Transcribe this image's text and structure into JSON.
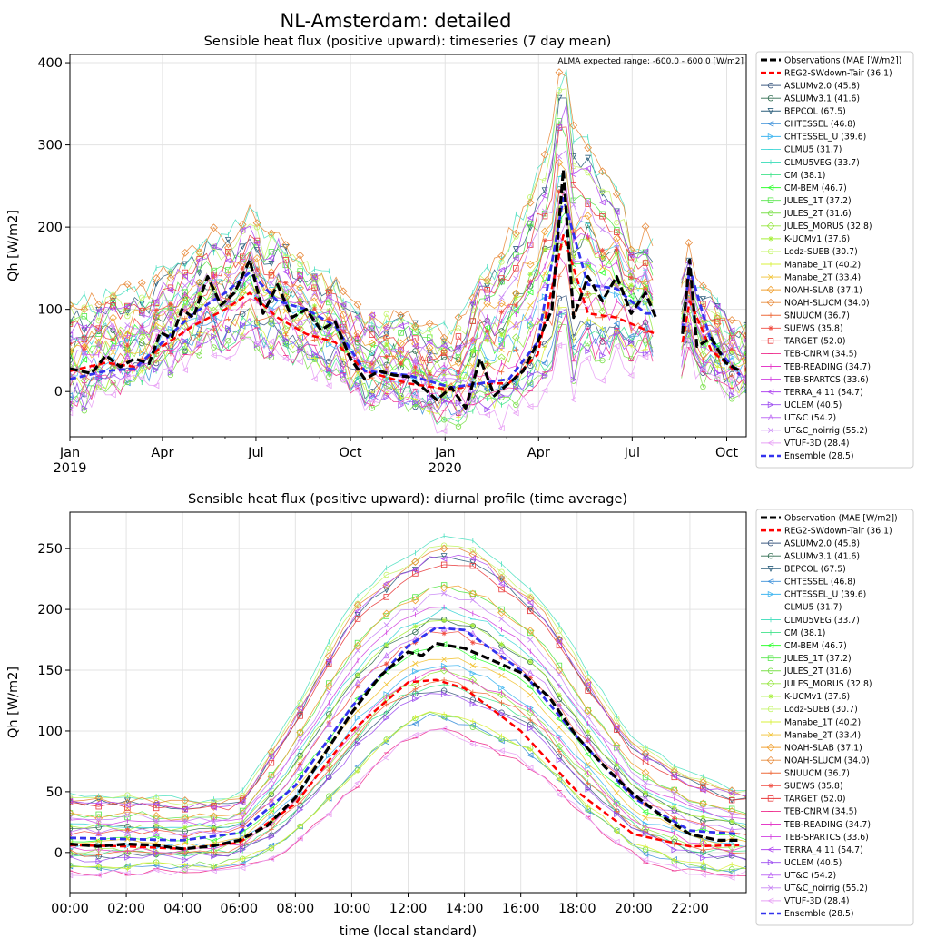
{
  "figure": {
    "title": "NL-Amsterdam: detailed"
  },
  "models": [
    {
      "name": "REG2-SWdown-Tair",
      "color": "#ff0000"
    },
    {
      "name": "ASLUMv2.0",
      "color": "#3d5a80"
    },
    {
      "name": "ASLUMv3.1",
      "color": "#2e6b4f"
    },
    {
      "name": "BEPCOL",
      "color": "#2c5f7c"
    },
    {
      "name": "CHTESSEL",
      "color": "#3a8fd9"
    },
    {
      "name": "CHTESSEL_U",
      "color": "#40b6f0"
    },
    {
      "name": "CLMU5",
      "color": "#3fd6d6"
    },
    {
      "name": "CLMU5VEG",
      "color": "#4ee0c0"
    },
    {
      "name": "CM",
      "color": "#3fe38a"
    },
    {
      "name": "CM-BEM",
      "color": "#33ff33"
    },
    {
      "name": "JULES_1T",
      "color": "#55e64a"
    },
    {
      "name": "JULES_2T",
      "color": "#7be04a"
    },
    {
      "name": "JULES_MORUS",
      "color": "#96e640"
    },
    {
      "name": "K-UCMv1",
      "color": "#a6f03a"
    },
    {
      "name": "Lodz-SUEB",
      "color": "#c4f56a"
    },
    {
      "name": "Manabe_1T",
      "color": "#d8f03a"
    },
    {
      "name": "Manabe_2T",
      "color": "#f2c232"
    },
    {
      "name": "NOAH-SLAB",
      "color": "#f0a030"
    },
    {
      "name": "NOAH-SLUCM",
      "color": "#e88a3a"
    },
    {
      "name": "SNUUCM",
      "color": "#ee6a3a"
    },
    {
      "name": "SUEWS",
      "color": "#f04c40"
    },
    {
      "name": "TARGET",
      "color": "#e8383a"
    },
    {
      "name": "TEB-CNRM",
      "color": "#ee2c8c"
    },
    {
      "name": "TEB-READING",
      "color": "#e43cc8"
    },
    {
      "name": "TEB-SPARTCS",
      "color": "#d040e0"
    },
    {
      "name": "TERRA_4.11",
      "color": "#b048f0"
    },
    {
      "name": "UCLEM",
      "color": "#9c4cf0"
    },
    {
      "name": "UT&C",
      "color": "#c070f5"
    },
    {
      "name": "UT&C_noirrig",
      "color": "#c884f5"
    },
    {
      "name": "VTUF-3D",
      "color": "#e8a0f5"
    }
  ],
  "chart_data": [
    {
      "type": "line",
      "title": "Sensible heat flux (positive upward): timeseries (7 day mean)",
      "ylabel": "Qh [W/m2]",
      "xlabel": "",
      "annotation": "ALMA expected range: -600.0 - 600.0 [W/m2]",
      "xlim": [
        "2019-01-01",
        "2020-10-20"
      ],
      "ylim": [
        -55,
        410
      ],
      "yticks": [
        0,
        100,
        200,
        300,
        400
      ],
      "xticks": [
        {
          "label": "Jan",
          "sublabel": "2019"
        },
        {
          "label": "Apr",
          "sublabel": ""
        },
        {
          "label": "Jul",
          "sublabel": ""
        },
        {
          "label": "Oct",
          "sublabel": ""
        },
        {
          "label": "Jan",
          "sublabel": "2020"
        },
        {
          "label": "Apr",
          "sublabel": ""
        },
        {
          "label": "Jul",
          "sublabel": ""
        },
        {
          "label": "Oct",
          "sublabel": ""
        }
      ],
      "grid": true,
      "legend": {
        "placement": "outside-right",
        "entries": [
          "Observations (MAE [W/m2])",
          "REG2-SWdown-Tair (36.1)",
          "ASLUMv2.0 (45.8)",
          "ASLUMv3.1 (41.6)",
          "BEPCOL (67.5)",
          "CHTESSEL (46.8)",
          "CHTESSEL_U (39.6)",
          "CLMU5 (31.7)",
          "CLMU5VEG (33.7)",
          "CM (38.1)",
          "CM-BEM (46.7)",
          "JULES_1T (37.2)",
          "JULES_2T (31.6)",
          "JULES_MORUS (32.8)",
          "K-UCMv1 (37.6)",
          "Lodz-SUEB (30.7)",
          "Manabe_1T (40.2)",
          "Manabe_2T (33.4)",
          "NOAH-SLAB (37.1)",
          "NOAH-SLUCM (34.0)",
          "SNUUCM (36.7)",
          "SUEWS (35.8)",
          "TARGET (52.0)",
          "TEB-CNRM (34.5)",
          "TEB-READING (34.7)",
          "TEB-SPARTCS (33.6)",
          "TERRA_4.11 (54.7)",
          "UCLEM (40.5)",
          "UT&C (54.2)",
          "UT&C_noirrig (55.2)",
          "VTUF-3D (28.4)",
          "Ensemble (28.5)"
        ]
      },
      "observations": [
        {
          "x": "2019-01-01",
          "y": 28
        },
        {
          "x": "2019-01-22",
          "y": 22
        },
        {
          "x": "2019-02-05",
          "y": 44
        },
        {
          "x": "2019-02-19",
          "y": 30
        },
        {
          "x": "2019-03-05",
          "y": 40
        },
        {
          "x": "2019-03-19",
          "y": 34
        },
        {
          "x": "2019-03-30",
          "y": 72
        },
        {
          "x": "2019-04-10",
          "y": 65
        },
        {
          "x": "2019-04-20",
          "y": 100
        },
        {
          "x": "2019-05-01",
          "y": 90
        },
        {
          "x": "2019-05-15",
          "y": 140
        },
        {
          "x": "2019-05-28",
          "y": 105
        },
        {
          "x": "2019-06-10",
          "y": 120
        },
        {
          "x": "2019-06-25",
          "y": 160
        },
        {
          "x": "2019-07-08",
          "y": 95
        },
        {
          "x": "2019-07-22",
          "y": 130
        },
        {
          "x": "2019-08-05",
          "y": 90
        },
        {
          "x": "2019-08-19",
          "y": 100
        },
        {
          "x": "2019-09-02",
          "y": 75
        },
        {
          "x": "2019-09-16",
          "y": 85
        },
        {
          "x": "2019-10-01",
          "y": 40
        },
        {
          "x": "2019-10-15",
          "y": 15
        },
        {
          "x": "2019-10-29",
          "y": 25
        },
        {
          "x": "2019-11-12",
          "y": 20
        },
        {
          "x": "2019-11-26",
          "y": 18
        },
        {
          "x": "2019-12-10",
          "y": 5
        },
        {
          "x": "2019-12-24",
          "y": -10
        },
        {
          "x": "2020-01-07",
          "y": 5
        },
        {
          "x": "2020-01-21",
          "y": -20
        },
        {
          "x": "2020-02-04",
          "y": 40
        },
        {
          "x": "2020-02-18",
          "y": -5
        },
        {
          "x": "2020-03-03",
          "y": 10
        },
        {
          "x": "2020-03-17",
          "y": 25
        },
        {
          "x": "2020-03-31",
          "y": 60
        },
        {
          "x": "2020-04-14",
          "y": 100
        },
        {
          "x": "2020-04-25",
          "y": 270
        },
        {
          "x": "2020-05-05",
          "y": 90
        },
        {
          "x": "2020-05-19",
          "y": 140
        },
        {
          "x": "2020-06-02",
          "y": 110
        },
        {
          "x": "2020-06-16",
          "y": 140
        },
        {
          "x": "2020-06-30",
          "y": 95
        },
        {
          "x": "2020-07-14",
          "y": 120
        },
        {
          "x": "2020-07-24",
          "y": 90
        },
        {
          "x": "2020-08-10",
          "y": null
        },
        {
          "x": "2020-08-19",
          "y": 70
        },
        {
          "x": "2020-08-26",
          "y": 160
        },
        {
          "x": "2020-09-02",
          "y": 55
        },
        {
          "x": "2020-09-16",
          "y": 65
        },
        {
          "x": "2020-09-30",
          "y": 35
        },
        {
          "x": "2020-10-14",
          "y": 25
        }
      ],
      "reg2": [
        {
          "x": "2019-01-01",
          "y": 25
        },
        {
          "x": "2019-02-05",
          "y": 35
        },
        {
          "x": "2019-03-05",
          "y": 30
        },
        {
          "x": "2019-04-01",
          "y": 55
        },
        {
          "x": "2019-05-01",
          "y": 80
        },
        {
          "x": "2019-06-01",
          "y": 100
        },
        {
          "x": "2019-06-25",
          "y": 120
        },
        {
          "x": "2019-07-22",
          "y": 90
        },
        {
          "x": "2019-08-19",
          "y": 70
        },
        {
          "x": "2019-09-16",
          "y": 60
        },
        {
          "x": "2019-10-15",
          "y": 25
        },
        {
          "x": "2019-11-26",
          "y": 10
        },
        {
          "x": "2020-01-07",
          "y": 2
        },
        {
          "x": "2020-02-04",
          "y": 10
        },
        {
          "x": "2020-03-03",
          "y": 10
        },
        {
          "x": "2020-03-31",
          "y": 45
        },
        {
          "x": "2020-04-25",
          "y": 190
        },
        {
          "x": "2020-05-19",
          "y": 95
        },
        {
          "x": "2020-06-16",
          "y": 90
        },
        {
          "x": "2020-07-14",
          "y": 75
        },
        {
          "x": "2020-07-24",
          "y": 70
        },
        {
          "x": "2020-08-10",
          "y": null
        },
        {
          "x": "2020-08-19",
          "y": 60
        },
        {
          "x": "2020-08-26",
          "y": 110
        },
        {
          "x": "2020-09-16",
          "y": 50
        },
        {
          "x": "2020-10-14",
          "y": 20
        }
      ],
      "ensemble": [
        {
          "x": "2019-01-01",
          "y": 15
        },
        {
          "x": "2019-02-05",
          "y": 25
        },
        {
          "x": "2019-03-05",
          "y": 28
        },
        {
          "x": "2019-04-01",
          "y": 60
        },
        {
          "x": "2019-05-01",
          "y": 95
        },
        {
          "x": "2019-06-01",
          "y": 120
        },
        {
          "x": "2019-06-25",
          "y": 145
        },
        {
          "x": "2019-07-22",
          "y": 110
        },
        {
          "x": "2019-08-19",
          "y": 100
        },
        {
          "x": "2019-09-16",
          "y": 80
        },
        {
          "x": "2019-10-15",
          "y": 25
        },
        {
          "x": "2019-11-26",
          "y": 20
        },
        {
          "x": "2020-01-07",
          "y": 5
        },
        {
          "x": "2020-02-04",
          "y": 10
        },
        {
          "x": "2020-03-03",
          "y": 15
        },
        {
          "x": "2020-03-31",
          "y": 60
        },
        {
          "x": "2020-04-25",
          "y": 235
        },
        {
          "x": "2020-05-19",
          "y": 130
        },
        {
          "x": "2020-06-16",
          "y": 125
        },
        {
          "x": "2020-07-14",
          "y": 95
        },
        {
          "x": "2020-07-24",
          "y": 95
        },
        {
          "x": "2020-08-10",
          "y": null
        },
        {
          "x": "2020-08-19",
          "y": 75
        },
        {
          "x": "2020-08-26",
          "y": 150
        },
        {
          "x": "2020-09-16",
          "y": 60
        },
        {
          "x": "2020-10-14",
          "y": 20
        }
      ],
      "model_envelope": {
        "description": "spread of individual models around observations",
        "low": [
          {
            "x": "2019-01-01",
            "y": -20
          },
          {
            "x": "2019-04-01",
            "y": 30
          },
          {
            "x": "2019-07-01",
            "y": 40
          },
          {
            "x": "2019-10-01",
            "y": 0
          },
          {
            "x": "2020-01-07",
            "y": -30
          },
          {
            "x": "2020-04-01",
            "y": 20
          },
          {
            "x": "2020-07-01",
            "y": 30
          },
          {
            "x": "2020-10-14",
            "y": 0
          }
        ],
        "high": [
          {
            "x": "2019-01-01",
            "y": 110
          },
          {
            "x": "2019-04-01",
            "y": 150
          },
          {
            "x": "2019-07-01",
            "y": 200
          },
          {
            "x": "2019-10-01",
            "y": 110
          },
          {
            "x": "2020-01-07",
            "y": 80
          },
          {
            "x": "2020-04-25",
            "y": 385
          },
          {
            "x": "2020-07-01",
            "y": 190
          },
          {
            "x": "2020-10-14",
            "y": 80
          }
        ]
      }
    },
    {
      "type": "line",
      "title": "Sensible heat flux (positive upward): diurnal profile (time average)",
      "ylabel": "Qh [W/m2]",
      "xlabel": "time (local standard)",
      "xlim": [
        0,
        24
      ],
      "ylim": [
        -33,
        280
      ],
      "yticks": [
        0,
        50,
        100,
        150,
        200,
        250
      ],
      "xticks": [
        "00:00",
        "02:00",
        "04:00",
        "06:00",
        "08:00",
        "10:00",
        "12:00",
        "14:00",
        "16:00",
        "18:00",
        "20:00",
        "22:00"
      ],
      "grid": true,
      "legend": {
        "placement": "outside-right",
        "entries": [
          "Observation (MAE [W/m2])",
          "REG2-SWdown-Tair (36.1)",
          "ASLUMv2.0 (45.8)",
          "ASLUMv3.1 (41.6)",
          "BEPCOL (67.5)",
          "CHTESSEL (46.8)",
          "CHTESSEL_U (39.6)",
          "CLMU5 (31.7)",
          "CLMU5VEG (33.7)",
          "CM (38.1)",
          "CM-BEM (46.7)",
          "JULES_1T (37.2)",
          "JULES_2T (31.6)",
          "JULES_MORUS (32.8)",
          "K-UCMv1 (37.6)",
          "Lodz-SUEB (30.7)",
          "Manabe_1T (40.2)",
          "Manabe_2T (33.4)",
          "NOAH-SLAB (37.1)",
          "NOAH-SLUCM (34.0)",
          "SNUUCM (36.7)",
          "SUEWS (35.8)",
          "TARGET (52.0)",
          "TEB-CNRM (34.5)",
          "TEB-READING (34.7)",
          "TEB-SPARTCS (33.6)",
          "TERRA_4.11 (54.7)",
          "UCLEM (40.5)",
          "UT&C (54.2)",
          "UT&C_noirrig (55.2)",
          "VTUF-3D (28.4)",
          "Ensemble (28.5)"
        ]
      },
      "observations": [
        {
          "x": 0,
          "y": 7
        },
        {
          "x": 1,
          "y": 5
        },
        {
          "x": 2,
          "y": 7
        },
        {
          "x": 3,
          "y": 6
        },
        {
          "x": 4,
          "y": 3
        },
        {
          "x": 5,
          "y": 5
        },
        {
          "x": 6,
          "y": 10
        },
        {
          "x": 7,
          "y": 22
        },
        {
          "x": 8,
          "y": 45
        },
        {
          "x": 9,
          "y": 80
        },
        {
          "x": 10,
          "y": 115
        },
        {
          "x": 11,
          "y": 145
        },
        {
          "x": 12,
          "y": 165
        },
        {
          "x": 12.5,
          "y": 162
        },
        {
          "x": 13,
          "y": 172
        },
        {
          "x": 14,
          "y": 168
        },
        {
          "x": 15,
          "y": 158
        },
        {
          "x": 16,
          "y": 148
        },
        {
          "x": 17,
          "y": 128
        },
        {
          "x": 18,
          "y": 95
        },
        {
          "x": 19,
          "y": 70
        },
        {
          "x": 20,
          "y": 48
        },
        {
          "x": 21,
          "y": 30
        },
        {
          "x": 22,
          "y": 15
        },
        {
          "x": 23,
          "y": 10
        },
        {
          "x": 23.75,
          "y": 10
        }
      ],
      "reg2": [
        {
          "x": 0,
          "y": 6
        },
        {
          "x": 2,
          "y": 5
        },
        {
          "x": 4,
          "y": 3
        },
        {
          "x": 6,
          "y": 8
        },
        {
          "x": 8,
          "y": 40
        },
        {
          "x": 10,
          "y": 100
        },
        {
          "x": 12,
          "y": 140
        },
        {
          "x": 13,
          "y": 142
        },
        {
          "x": 14,
          "y": 135
        },
        {
          "x": 16,
          "y": 100
        },
        {
          "x": 18,
          "y": 50
        },
        {
          "x": 20,
          "y": 15
        },
        {
          "x": 22,
          "y": 5
        },
        {
          "x": 23.75,
          "y": 6
        }
      ],
      "ensemble": [
        {
          "x": 0,
          "y": 12
        },
        {
          "x": 2,
          "y": 11
        },
        {
          "x": 4,
          "y": 10
        },
        {
          "x": 6,
          "y": 16
        },
        {
          "x": 8,
          "y": 55
        },
        {
          "x": 10,
          "y": 120
        },
        {
          "x": 12,
          "y": 170
        },
        {
          "x": 13,
          "y": 185
        },
        {
          "x": 14,
          "y": 183
        },
        {
          "x": 16,
          "y": 150
        },
        {
          "x": 18,
          "y": 95
        },
        {
          "x": 20,
          "y": 45
        },
        {
          "x": 22,
          "y": 18
        },
        {
          "x": 23.75,
          "y": 15
        }
      ],
      "model_envelope": {
        "description": "spread of individual models around observations",
        "low": [
          {
            "x": 0,
            "y": -15
          },
          {
            "x": 6,
            "y": -10
          },
          {
            "x": 8,
            "y": 15
          },
          {
            "x": 12,
            "y": 90
          },
          {
            "x": 13,
            "y": 100
          },
          {
            "x": 16,
            "y": 70
          },
          {
            "x": 20,
            "y": -10
          },
          {
            "x": 23.75,
            "y": -18
          }
        ],
        "high": [
          {
            "x": 0,
            "y": 55
          },
          {
            "x": 6,
            "y": 50
          },
          {
            "x": 10,
            "y": 215
          },
          {
            "x": 13,
            "y": 265
          },
          {
            "x": 14.5,
            "y": 260
          },
          {
            "x": 17,
            "y": 200
          },
          {
            "x": 20,
            "y": 90
          },
          {
            "x": 23.75,
            "y": 55
          }
        ]
      }
    }
  ]
}
